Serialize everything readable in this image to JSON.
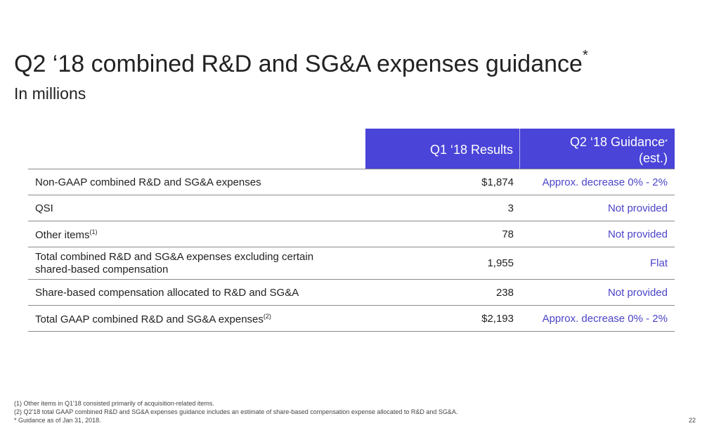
{
  "title": "Q2 ‘18 combined R&D and SG&A expenses guidance",
  "title_mark": "*",
  "subtitle": "In millions",
  "table": {
    "headers": {
      "q1": "Q1 ‘18 Results",
      "q2_line1": "Q2 ‘18 Guidance",
      "q2_mark": "*",
      "q2_line2": "(est.)"
    },
    "rows": [
      {
        "label": "Non-GAAP combined R&D and SG&A expenses",
        "note": "",
        "q1": "$1,874",
        "q2": "Approx. decrease 0% - 2%"
      },
      {
        "label": "QSI",
        "note": "",
        "q1": "3",
        "q2": "Not provided"
      },
      {
        "label": "Other items",
        "note": "(1)",
        "q1": "78",
        "q2": "Not provided"
      },
      {
        "label": "Total combined R&D and SG&A expenses excluding certain",
        "label2": "shared-based compensation",
        "note": "",
        "q1": "1,955",
        "q2": "Flat"
      },
      {
        "label": "Share-based compensation allocated to R&D and SG&A",
        "note": "",
        "q1": "238",
        "q2": "Not provided"
      },
      {
        "label": "Total GAAP combined R&D and SG&A expenses",
        "note": "(2)",
        "q1": "$2,193",
        "q2": "Approx. decrease 0% - 2%"
      }
    ]
  },
  "footnotes": [
    "(1) Other items in Q1'18 consisted primarily of acquisition-related items.",
    "(2) Q2'18 total GAAP combined R&D and SG&A expenses guidance includes an estimate of share-based compensation expense allocated to R&D and SG&A.",
    "* Guidance as of Jan 31, 2018."
  ],
  "page_number": "22",
  "colors": {
    "header_bg": "#4a44d8",
    "guidance_text": "#4a44c8"
  }
}
